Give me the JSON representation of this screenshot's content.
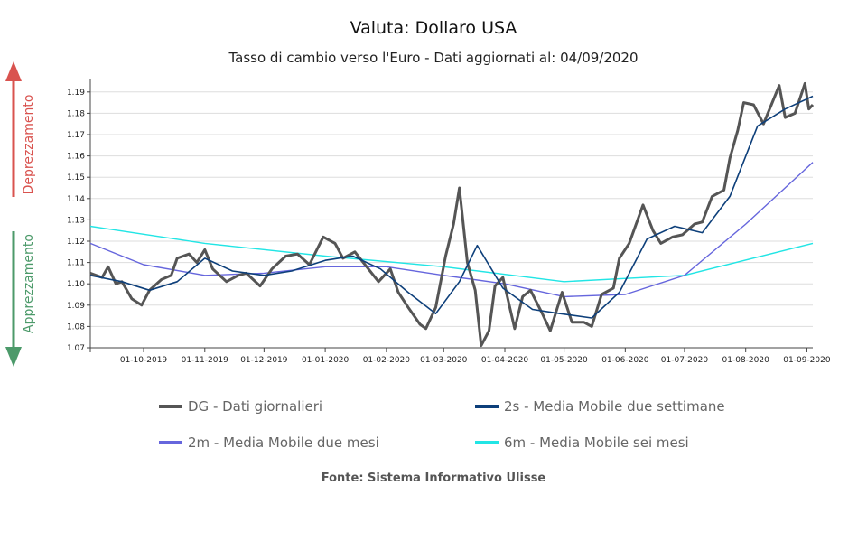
{
  "chart_data": {
    "type": "line",
    "title": "Valuta: Dollaro USA",
    "subtitle": "Tasso di cambio verso l'Euro - Dati aggiornati al: 04/09/2020",
    "ylim": [
      1.07,
      1.195
    ],
    "y_ticks": [
      "1.07",
      "1.08",
      "1.09",
      "1.10",
      "1.11",
      "1.12",
      "1.13",
      "1.14",
      "1.15",
      "1.16",
      "1.17",
      "1.18",
      "1.19"
    ],
    "x_ticks": [
      "01-10-2019",
      "01-11-2019",
      "01-12-2019",
      "01-01-2020",
      "01-02-2020",
      "01-03-2020",
      "01-04-2020",
      "01-05-2020",
      "01-06-2020",
      "01-07-2020",
      "01-08-2020",
      "01-09-2020"
    ],
    "x_range": [
      "04-09-2019",
      "04-09-2020"
    ],
    "grid": "horizontal",
    "legend_position": "bottom",
    "side_labels": {
      "up": "Deprezzamento",
      "down": "Apprezzamento"
    },
    "side_colors": {
      "up": "#d9534f",
      "down": "#4c9a6a"
    },
    "series": [
      {
        "name": "DG - Dati giornalieri",
        "color": "#555555",
        "points": [
          [
            "2019-09-04",
            1.105
          ],
          [
            "2019-09-10",
            1.103
          ],
          [
            "2019-09-13",
            1.108
          ],
          [
            "2019-09-17",
            1.1
          ],
          [
            "2019-09-20",
            1.101
          ],
          [
            "2019-09-25",
            1.093
          ],
          [
            "2019-09-30",
            1.09
          ],
          [
            "2019-10-04",
            1.097
          ],
          [
            "2019-10-10",
            1.102
          ],
          [
            "2019-10-15",
            1.104
          ],
          [
            "2019-10-18",
            1.112
          ],
          [
            "2019-10-24",
            1.114
          ],
          [
            "2019-10-28",
            1.11
          ],
          [
            "2019-11-01",
            1.116
          ],
          [
            "2019-11-05",
            1.107
          ],
          [
            "2019-11-12",
            1.101
          ],
          [
            "2019-11-18",
            1.104
          ],
          [
            "2019-11-22",
            1.105
          ],
          [
            "2019-11-29",
            1.099
          ],
          [
            "2019-12-05",
            1.107
          ],
          [
            "2019-12-12",
            1.113
          ],
          [
            "2019-12-18",
            1.114
          ],
          [
            "2019-12-24",
            1.109
          ],
          [
            "2019-12-31",
            1.122
          ],
          [
            "2020-01-06",
            1.119
          ],
          [
            "2020-01-10",
            1.112
          ],
          [
            "2020-01-16",
            1.115
          ],
          [
            "2020-01-22",
            1.108
          ],
          [
            "2020-01-28",
            1.101
          ],
          [
            "2020-02-03",
            1.107
          ],
          [
            "2020-02-07",
            1.096
          ],
          [
            "2020-02-12",
            1.089
          ],
          [
            "2020-02-18",
            1.081
          ],
          [
            "2020-02-21",
            1.079
          ],
          [
            "2020-02-26",
            1.089
          ],
          [
            "2020-03-02",
            1.113
          ],
          [
            "2020-03-06",
            1.128
          ],
          [
            "2020-03-09",
            1.145
          ],
          [
            "2020-03-13",
            1.11
          ],
          [
            "2020-03-17",
            1.097
          ],
          [
            "2020-03-20",
            1.071
          ],
          [
            "2020-03-24",
            1.078
          ],
          [
            "2020-03-27",
            1.099
          ],
          [
            "2020-03-31",
            1.103
          ],
          [
            "2020-04-06",
            1.079
          ],
          [
            "2020-04-10",
            1.094
          ],
          [
            "2020-04-14",
            1.097
          ],
          [
            "2020-04-20",
            1.086
          ],
          [
            "2020-04-24",
            1.078
          ],
          [
            "2020-04-30",
            1.096
          ],
          [
            "2020-05-05",
            1.082
          ],
          [
            "2020-05-11",
            1.082
          ],
          [
            "2020-05-15",
            1.08
          ],
          [
            "2020-05-20",
            1.095
          ],
          [
            "2020-05-26",
            1.098
          ],
          [
            "2020-05-29",
            1.112
          ],
          [
            "2020-06-03",
            1.119
          ],
          [
            "2020-06-10",
            1.137
          ],
          [
            "2020-06-15",
            1.125
          ],
          [
            "2020-06-19",
            1.119
          ],
          [
            "2020-06-25",
            1.122
          ],
          [
            "2020-06-30",
            1.123
          ],
          [
            "2020-07-06",
            1.128
          ],
          [
            "2020-07-10",
            1.129
          ],
          [
            "2020-07-15",
            1.141
          ],
          [
            "2020-07-21",
            1.144
          ],
          [
            "2020-07-24",
            1.159
          ],
          [
            "2020-07-28",
            1.172
          ],
          [
            "2020-07-31",
            1.185
          ],
          [
            "2020-08-05",
            1.184
          ],
          [
            "2020-08-10",
            1.175
          ],
          [
            "2020-08-14",
            1.184
          ],
          [
            "2020-08-18",
            1.193
          ],
          [
            "2020-08-21",
            1.178
          ],
          [
            "2020-08-26",
            1.18
          ],
          [
            "2020-08-31",
            1.194
          ],
          [
            "2020-09-02",
            1.182
          ],
          [
            "2020-09-04",
            1.184
          ]
        ]
      },
      {
        "name": "2s - Media Mobile due settimane",
        "color": "#0d3f7a",
        "points": [
          [
            "2019-09-04",
            1.104
          ],
          [
            "2019-09-20",
            1.101
          ],
          [
            "2019-10-04",
            1.097
          ],
          [
            "2019-10-18",
            1.101
          ],
          [
            "2019-11-01",
            1.112
          ],
          [
            "2019-11-15",
            1.106
          ],
          [
            "2019-12-01",
            1.104
          ],
          [
            "2019-12-15",
            1.106
          ],
          [
            "2020-01-01",
            1.111
          ],
          [
            "2020-01-15",
            1.113
          ],
          [
            "2020-01-29",
            1.107
          ],
          [
            "2020-02-12",
            1.096
          ],
          [
            "2020-02-26",
            1.086
          ],
          [
            "2020-03-09",
            1.101
          ],
          [
            "2020-03-18",
            1.118
          ],
          [
            "2020-03-31",
            1.098
          ],
          [
            "2020-04-15",
            1.088
          ],
          [
            "2020-04-29",
            1.086
          ],
          [
            "2020-05-15",
            1.084
          ],
          [
            "2020-05-29",
            1.096
          ],
          [
            "2020-06-12",
            1.121
          ],
          [
            "2020-06-26",
            1.127
          ],
          [
            "2020-07-10",
            1.124
          ],
          [
            "2020-07-24",
            1.141
          ],
          [
            "2020-08-07",
            1.174
          ],
          [
            "2020-08-21",
            1.182
          ],
          [
            "2020-09-04",
            1.188
          ]
        ]
      },
      {
        "name": "2m - Media Mobile due mesi",
        "color": "#6666dd",
        "points": [
          [
            "2019-09-04",
            1.119
          ],
          [
            "2019-10-01",
            1.109
          ],
          [
            "2019-11-01",
            1.104
          ],
          [
            "2019-12-01",
            1.105
          ],
          [
            "2020-01-01",
            1.108
          ],
          [
            "2020-02-01",
            1.108
          ],
          [
            "2020-03-01",
            1.104
          ],
          [
            "2020-04-01",
            1.1
          ],
          [
            "2020-05-01",
            1.094
          ],
          [
            "2020-06-01",
            1.095
          ],
          [
            "2020-07-01",
            1.104
          ],
          [
            "2020-08-01",
            1.128
          ],
          [
            "2020-09-04",
            1.157
          ]
        ]
      },
      {
        "name": "6m - Media Mobile sei mesi",
        "color": "#22e5e5",
        "points": [
          [
            "2019-09-04",
            1.127
          ],
          [
            "2019-11-01",
            1.119
          ],
          [
            "2020-01-01",
            1.113
          ],
          [
            "2020-03-01",
            1.108
          ],
          [
            "2020-05-01",
            1.101
          ],
          [
            "2020-07-01",
            1.104
          ],
          [
            "2020-09-04",
            1.119
          ]
        ]
      }
    ],
    "source": "Fonte: Sistema Informativo Ulisse"
  }
}
